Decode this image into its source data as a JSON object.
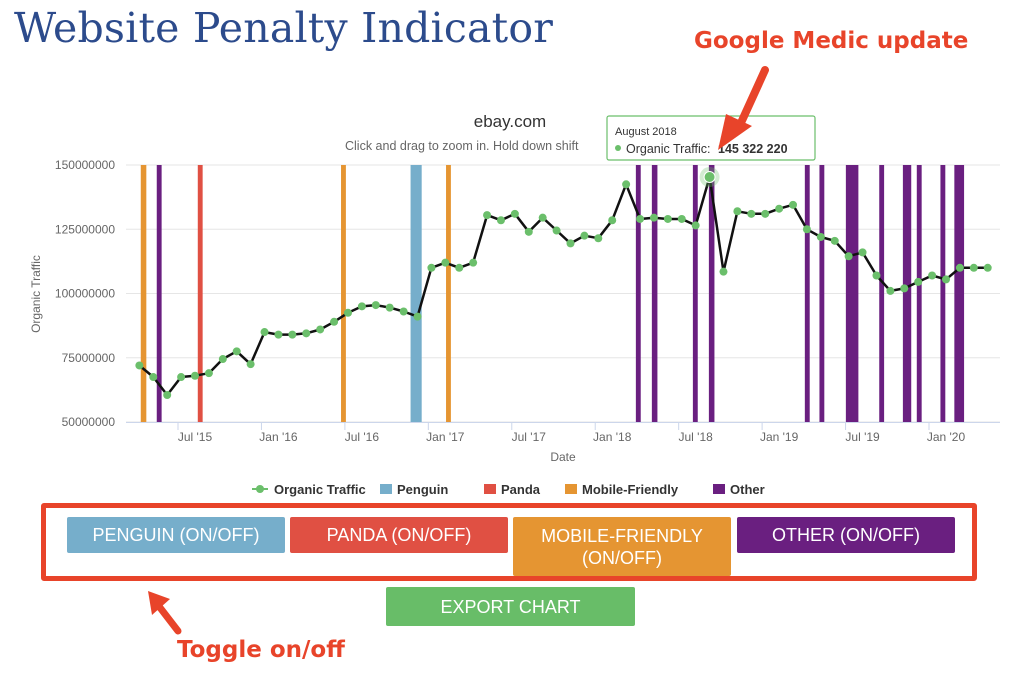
{
  "page": {
    "title": "Website Penalty Indicator"
  },
  "annotations": {
    "top": "Google Medic update",
    "bottom": "Toggle on/off"
  },
  "tooltip": {
    "title": "August 2018",
    "label": "Organic Traffic:",
    "value": "145 322 220"
  },
  "buttons": {
    "penguin": "PENGUIN (ON/OFF)",
    "panda": "PANDA (ON/OFF)",
    "mobile_line1": "MOBILE-FRIENDLY",
    "mobile_line2": "(ON/OFF)",
    "other": "OTHER (ON/OFF)",
    "export": "EXPORT CHART"
  },
  "colors": {
    "penguin": "#76aecb",
    "panda": "#e05043",
    "mobile": "#e59532",
    "other": "#6a1f80",
    "traffic_point": "#6bbf6b",
    "export": "#68bd68",
    "annotation": "#e8442a",
    "title": "#2c4b8c"
  },
  "chart_data": {
    "type": "line",
    "title": "ebay.com",
    "subtitle": "Click and drag to zoom in. Hold down shift",
    "xlabel": "Date",
    "ylabel": "Organic Traffic",
    "ylim": [
      50000000,
      150000000
    ],
    "y_ticks": [
      "50000000",
      "75000000",
      "100000000",
      "125000000",
      "150000000"
    ],
    "x_ticks": [
      {
        "label": "Jul '15",
        "month": 6
      },
      {
        "label": "Jan '16",
        "month": 12
      },
      {
        "label": "Jul '16",
        "month": 18
      },
      {
        "label": "Jan '17",
        "month": 24
      },
      {
        "label": "Jul '17",
        "month": 30
      },
      {
        "label": "Jan '18",
        "month": 36
      },
      {
        "label": "Jul '18",
        "month": 42
      },
      {
        "label": "Jan '19",
        "month": 48
      },
      {
        "label": "Jul '19",
        "month": 54
      },
      {
        "label": "Jan '20",
        "month": 60
      }
    ],
    "legend": [
      "Organic Traffic",
      "Penguin",
      "Panda",
      "Mobile-Friendly",
      "Other"
    ],
    "legend_position": "bottom",
    "series": [
      {
        "name": "Organic Traffic",
        "values": [
          {
            "month": 2,
            "y": 72000000
          },
          {
            "month": 3,
            "y": 67500000
          },
          {
            "month": 4,
            "y": 60500000
          },
          {
            "month": 5,
            "y": 67500000
          },
          {
            "month": 6,
            "y": 68000000
          },
          {
            "month": 7,
            "y": 69000000
          },
          {
            "month": 8,
            "y": 74500000
          },
          {
            "month": 9,
            "y": 77500000
          },
          {
            "month": 10,
            "y": 72500000
          },
          {
            "month": 11,
            "y": 85000000
          },
          {
            "month": 12,
            "y": 84000000
          },
          {
            "month": 13,
            "y": 84000000
          },
          {
            "month": 14,
            "y": 84500000
          },
          {
            "month": 15,
            "y": 86000000
          },
          {
            "month": 16,
            "y": 89000000
          },
          {
            "month": 17,
            "y": 92500000
          },
          {
            "month": 18,
            "y": 95000000
          },
          {
            "month": 19,
            "y": 95500000
          },
          {
            "month": 20,
            "y": 94500000
          },
          {
            "month": 21,
            "y": 93000000
          },
          {
            "month": 22,
            "y": 91000000
          },
          {
            "month": 23,
            "y": 110000000
          },
          {
            "month": 24,
            "y": 112000000
          },
          {
            "month": 25,
            "y": 110000000
          },
          {
            "month": 26,
            "y": 112000000
          },
          {
            "month": 27,
            "y": 130500000
          },
          {
            "month": 28,
            "y": 128500000
          },
          {
            "month": 29,
            "y": 131000000
          },
          {
            "month": 30,
            "y": 124000000
          },
          {
            "month": 31,
            "y": 129500000
          },
          {
            "month": 32,
            "y": 124500000
          },
          {
            "month": 33,
            "y": 119500000
          },
          {
            "month": 34,
            "y": 122500000
          },
          {
            "month": 35,
            "y": 121500000
          },
          {
            "month": 36,
            "y": 128500000
          },
          {
            "month": 37,
            "y": 142500000
          },
          {
            "month": 38,
            "y": 129000000
          },
          {
            "month": 39,
            "y": 129500000
          },
          {
            "month": 40,
            "y": 129000000
          },
          {
            "month": 41,
            "y": 129000000
          },
          {
            "month": 42,
            "y": 126500000
          },
          {
            "month": 43,
            "y": 145322220
          },
          {
            "month": 44,
            "y": 108500000
          },
          {
            "month": 45,
            "y": 132000000
          },
          {
            "month": 46,
            "y": 131000000
          },
          {
            "month": 47,
            "y": 131000000
          },
          {
            "month": 48,
            "y": 133000000
          },
          {
            "month": 49,
            "y": 134500000
          },
          {
            "month": 50,
            "y": 125000000
          },
          {
            "month": 51,
            "y": 122000000
          },
          {
            "month": 52,
            "y": 120500000
          },
          {
            "month": 53,
            "y": 114500000
          },
          {
            "month": 54,
            "y": 116000000
          },
          {
            "month": 55,
            "y": 107000000
          },
          {
            "month": 56,
            "y": 101000000
          },
          {
            "month": 57,
            "y": 102000000
          },
          {
            "month": 58,
            "y": 104500000
          },
          {
            "month": 59,
            "y": 107000000
          },
          {
            "month": 60,
            "y": 105500000
          },
          {
            "month": 61,
            "y": 110000000
          },
          {
            "month": 62,
            "y": 110000000
          },
          {
            "month": 63,
            "y": 110000000
          }
        ]
      }
    ],
    "update_bands": [
      {
        "type": "mobile",
        "start": 2.1,
        "end": 2.5
      },
      {
        "type": "other",
        "start": 3.25,
        "end": 3.6
      },
      {
        "type": "panda",
        "start": 6.2,
        "end": 6.55
      },
      {
        "type": "mobile",
        "start": 16.5,
        "end": 16.85
      },
      {
        "type": "penguin",
        "start": 21.5,
        "end": 22.3
      },
      {
        "type": "mobile",
        "start": 24.05,
        "end": 24.4
      },
      {
        "type": "other",
        "start": 37.7,
        "end": 38.05
      },
      {
        "type": "other",
        "start": 38.85,
        "end": 39.25
      },
      {
        "type": "other",
        "start": 41.8,
        "end": 42.15
      },
      {
        "type": "other",
        "start": 42.95,
        "end": 43.35
      },
      {
        "type": "other",
        "start": 49.85,
        "end": 50.2
      },
      {
        "type": "other",
        "start": 50.9,
        "end": 51.25
      },
      {
        "type": "other",
        "start": 52.8,
        "end": 53.7
      },
      {
        "type": "other",
        "start": 55.2,
        "end": 55.55
      },
      {
        "type": "other",
        "start": 56.9,
        "end": 57.5
      },
      {
        "type": "other",
        "start": 57.9,
        "end": 58.25
      },
      {
        "type": "other",
        "start": 59.6,
        "end": 59.95
      },
      {
        "type": "other",
        "start": 60.6,
        "end": 61.3
      }
    ],
    "highlight_point": {
      "month": 43,
      "y": 145322220
    }
  }
}
